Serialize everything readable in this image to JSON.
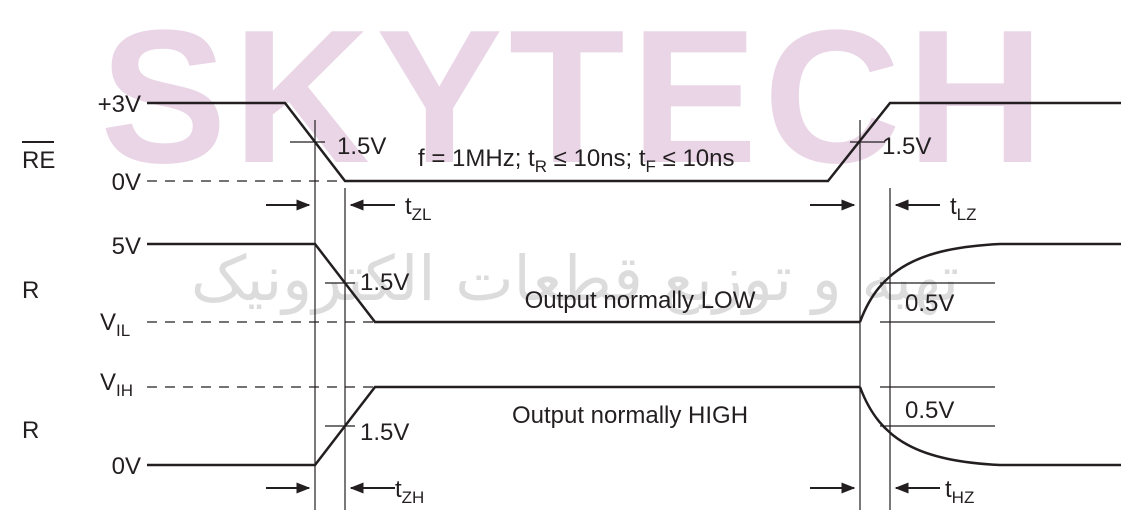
{
  "watermark": {
    "brand": "SKYTECH",
    "subtitle": "تهیه و توزیع قطعات الکترونیک"
  },
  "condition": [
    "f = 1MHz; t",
    "R",
    " ≤ 10ns; t",
    "F",
    " ≤ 10ns"
  ],
  "signals": [
    {
      "name": "RE",
      "high_label": "+3V",
      "low_label": "0V",
      "threshold_labels": [
        "1.5V",
        "1.5V"
      ]
    },
    {
      "name": "R",
      "high_label": "5V",
      "low_label": {
        "main": "V",
        "sub": "IL"
      },
      "threshold_label": "1.5V",
      "note": "Output normally LOW",
      "offset_label": "0.5V"
    },
    {
      "name": "R",
      "high_label": {
        "main": "V",
        "sub": "IH"
      },
      "low_label": "0V",
      "threshold_label": "1.5V",
      "note": "Output normally HIGH",
      "offset_label": "0.5V"
    }
  ],
  "timings": {
    "zl": {
      "main": "t",
      "sub": "ZL"
    },
    "lz": {
      "main": "t",
      "sub": "LZ"
    },
    "zh": {
      "main": "t",
      "sub": "ZH"
    },
    "hz": {
      "main": "t",
      "sub": "HZ"
    }
  }
}
